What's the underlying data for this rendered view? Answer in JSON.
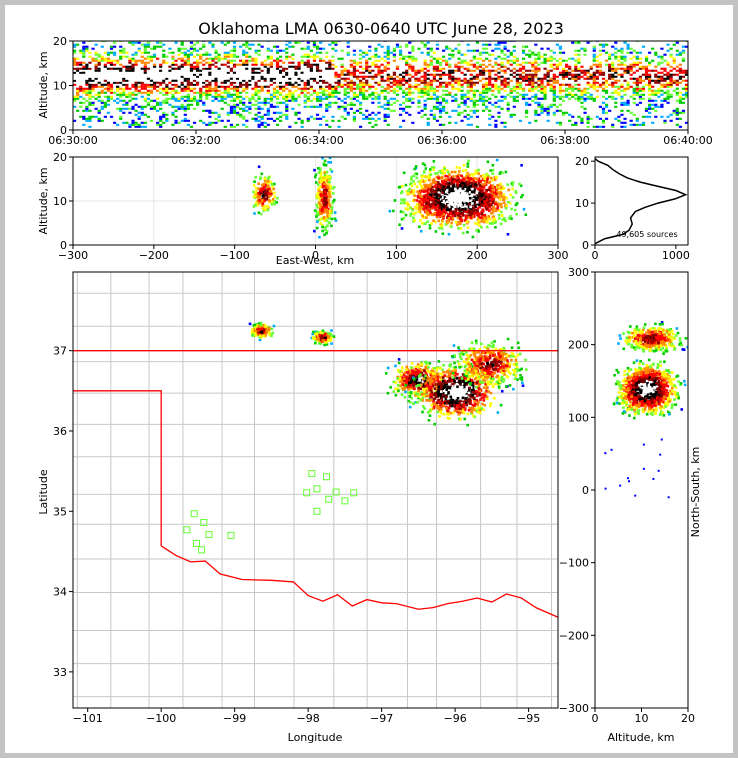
{
  "title": "Oklahoma LMA 0630-0640 UTC June 28, 2023",
  "colors": {
    "density": [
      "#0000ff",
      "#00aaff",
      "#00cc00",
      "#66ff33",
      "#ffff00",
      "#ff8800",
      "#ff0000",
      "#880000",
      "#000000",
      "#ffffff"
    ],
    "state_border": "#ff0000",
    "county_lines": "#c8c8c8",
    "stations": "#66ff33"
  },
  "chart_data": [
    {
      "id": "time-altitude",
      "type": "heatmap",
      "xlabel": "",
      "ylabel": "Altitude, km",
      "x_ticks": [
        "06:30:00",
        "06:32:00",
        "06:34:00",
        "06:36:00",
        "06:38:00",
        "06:40:00"
      ],
      "y_ticks": [
        "0",
        "10",
        "20"
      ],
      "xlim_minutes": [
        0,
        10
      ],
      "ylim": [
        0,
        20
      ]
    },
    {
      "id": "east-west-altitude",
      "type": "heatmap",
      "xlabel": "East-West, km",
      "ylabel": "Altitude, km",
      "x_ticks": [
        "−300",
        "−200",
        "−100",
        "0",
        "100",
        "200",
        "300"
      ],
      "y_ticks": [
        "0",
        "10",
        "20"
      ],
      "xlim": [
        -300,
        300
      ],
      "ylim": [
        0,
        20
      ],
      "grid": true
    },
    {
      "id": "altitude-histogram",
      "type": "line",
      "x_ticks": [
        "0",
        "1000"
      ],
      "y_ticks": [
        "0",
        "10",
        "20"
      ],
      "xlim": [
        0,
        1150
      ],
      "ylim": [
        0,
        21
      ],
      "annotation": "49,605 sources",
      "curve": [
        [
          0,
          0.3
        ],
        [
          120,
          1.5
        ],
        [
          340,
          2.5
        ],
        [
          420,
          3.5
        ],
        [
          460,
          5
        ],
        [
          440,
          6.5
        ],
        [
          500,
          8
        ],
        [
          620,
          9
        ],
        [
          780,
          10
        ],
        [
          990,
          11
        ],
        [
          1120,
          12
        ],
        [
          1000,
          13
        ],
        [
          780,
          14
        ],
        [
          560,
          15
        ],
        [
          400,
          16
        ],
        [
          300,
          17
        ],
        [
          220,
          18
        ],
        [
          160,
          19
        ],
        [
          40,
          20
        ],
        [
          0,
          20.6
        ]
      ]
    },
    {
      "id": "plan-view",
      "type": "heatmap",
      "xlabel": "Longitude",
      "ylabel": "Latitude",
      "x_ticks": [
        "−101",
        "−100",
        "−99",
        "−98",
        "−97",
        "−96",
        "−95"
      ],
      "y_ticks": [
        "33",
        "34",
        "35",
        "36",
        "37"
      ],
      "xlim": [
        -101.2,
        -94.6
      ],
      "ylim": [
        32.55,
        37.98
      ],
      "stations": [
        [
          -99.55,
          34.97
        ],
        [
          -99.42,
          34.86
        ],
        [
          -99.65,
          34.77
        ],
        [
          -99.35,
          34.71
        ],
        [
          -99.52,
          34.6
        ],
        [
          -99.45,
          34.52
        ],
        [
          -99.05,
          34.7
        ],
        [
          -97.95,
          35.47
        ],
        [
          -97.75,
          35.43
        ],
        [
          -97.88,
          35.28
        ],
        [
          -98.02,
          35.23
        ],
        [
          -97.62,
          35.24
        ],
        [
          -97.72,
          35.15
        ],
        [
          -97.5,
          35.13
        ],
        [
          -97.38,
          35.23
        ],
        [
          -97.88,
          35.0
        ]
      ]
    },
    {
      "id": "altitude-north-south",
      "type": "heatmap",
      "xlabel": "Altitude, km",
      "ylabel": "North-South, km",
      "x_ticks": [
        "0",
        "10",
        "20"
      ],
      "y_ticks": [
        "−300",
        "−200",
        "−100",
        "0",
        "100",
        "200",
        "300"
      ],
      "xlim": [
        0,
        20
      ],
      "ylim": [
        -300,
        300
      ]
    }
  ]
}
